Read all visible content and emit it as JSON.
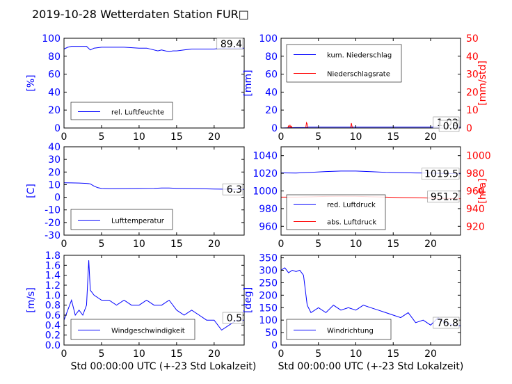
{
  "figure_title": "2019-10-28 Wetterdaten Station FUR□",
  "xlabel": "Std 00:00:00 UTC (+-23 Std Lokalzeit)",
  "colors": {
    "primary": "#0000ff",
    "secondary": "#ff0000",
    "axis": "#000000"
  },
  "chart_data": [
    {
      "id": "humidity",
      "type": "line",
      "xlim": [
        0,
        24
      ],
      "ylim": [
        0,
        100
      ],
      "yticks": [
        0,
        20,
        40,
        60,
        80,
        100
      ],
      "ylabel": "[%]",
      "xticks": [
        0,
        5,
        10,
        15,
        20
      ],
      "legend": "bottom-left",
      "last_value_label": "89.4",
      "series": [
        {
          "name": "rel. Luftfeuchte",
          "color": "#0000ff",
          "x": [
            0,
            0.5,
            1,
            2,
            3,
            3.5,
            4,
            5,
            6,
            8,
            10,
            11,
            12,
            12.5,
            13,
            13.5,
            14,
            14.5,
            15,
            16,
            17,
            18,
            19,
            20,
            21,
            22,
            23,
            24
          ],
          "y": [
            88,
            90,
            91,
            91,
            91,
            87,
            89,
            90,
            90,
            90,
            89,
            89,
            87,
            86,
            87,
            86,
            85,
            86,
            86,
            87,
            88,
            88,
            88,
            88,
            89,
            89,
            89,
            89
          ]
        }
      ]
    },
    {
      "id": "precipitation",
      "type": "line",
      "xlim": [
        0,
        24
      ],
      "ylim": [
        0,
        100
      ],
      "yticks": [
        0,
        20,
        40,
        60,
        80,
        100
      ],
      "ylabel": "[mm]",
      "ylim_right": [
        0,
        50
      ],
      "yticks_right": [
        0,
        10,
        20,
        30,
        40,
        50
      ],
      "ylabel_right": "[mm/std]",
      "xticks": [
        0,
        5,
        10,
        15,
        20
      ],
      "legend": "top-left",
      "last_value_labels": [
        "1.02",
        "0.0"
      ],
      "series": [
        {
          "name": "kum. Niederschlag",
          "color": "#0000ff",
          "axis": "left",
          "x": [
            0,
            1,
            2,
            3.4,
            3.6,
            5,
            8,
            9.5,
            10,
            12,
            16,
            20,
            24
          ],
          "y": [
            0,
            0.3,
            0.5,
            0.6,
            0.9,
            0.9,
            0.9,
            1.0,
            1.02,
            1.02,
            1.02,
            1.02,
            1.02
          ]
        },
        {
          "name": "Niederschlagsrate",
          "color": "#ff0000",
          "axis": "right",
          "x": [
            0,
            0.9,
            1.0,
            1.1,
            1.2,
            1.3,
            1.4,
            1.5,
            2.5,
            3.3,
            3.4,
            3.5,
            3.6,
            5,
            9.3,
            9.4,
            9.5,
            9.6,
            12,
            24
          ],
          "y": [
            0,
            0,
            1.2,
            0.6,
            1.5,
            0.4,
            1.0,
            0,
            0,
            0,
            3.0,
            2.2,
            0,
            0,
            0,
            2.7,
            0.8,
            0,
            0,
            0
          ]
        }
      ]
    },
    {
      "id": "temperature",
      "type": "line",
      "xlim": [
        0,
        24
      ],
      "ylim": [
        -30,
        40
      ],
      "yticks": [
        -30,
        -20,
        -10,
        0,
        10,
        20,
        30,
        40
      ],
      "ylabel": "[C]",
      "xticks": [
        0,
        5,
        10,
        15,
        20
      ],
      "legend": "bottom-left",
      "last_value_label": "6.3",
      "series": [
        {
          "name": "Lufttemperatur",
          "color": "#0000ff",
          "x": [
            0,
            1,
            2,
            3,
            3.5,
            4,
            4.5,
            5,
            6,
            8,
            10,
            12,
            13,
            14,
            15,
            16,
            18,
            20,
            22,
            24
          ],
          "y": [
            11.5,
            11.4,
            11.3,
            11,
            10.6,
            8.8,
            7.6,
            7,
            6.8,
            6.9,
            7.0,
            7.1,
            7.3,
            7.3,
            7.1,
            7.0,
            6.8,
            6.5,
            6.4,
            6.3
          ]
        }
      ]
    },
    {
      "id": "pressure",
      "type": "line",
      "xlim": [
        0,
        24
      ],
      "ylim": [
        950,
        1050
      ],
      "yticks": [
        960,
        980,
        1000,
        1020,
        1040
      ],
      "ylabel": "",
      "ylim_right": [
        910,
        1010
      ],
      "yticks_right": [
        920,
        940,
        960,
        980,
        1000
      ],
      "ylabel_right": "[hPa]",
      "xticks": [
        0,
        5,
        10,
        15,
        20
      ],
      "legend": "bottom-left",
      "last_value_labels": [
        "1019.5",
        "951.2"
      ],
      "series": [
        {
          "name": "red. Luftdruck",
          "color": "#0000ff",
          "axis": "left",
          "x": [
            0,
            2,
            4,
            6,
            8,
            10,
            12,
            14,
            16,
            18,
            20,
            22,
            24
          ],
          "y": [
            1020.5,
            1020.3,
            1021,
            1022,
            1022.5,
            1022.5,
            1021.8,
            1021,
            1020.6,
            1020.4,
            1020.2,
            1019.8,
            1019.5
          ]
        },
        {
          "name": "abs. Luftdruck",
          "color": "#ff0000",
          "axis": "right",
          "x": [
            0,
            2,
            4,
            6,
            8,
            10,
            12,
            14,
            16,
            18,
            20,
            22,
            24
          ],
          "y": [
            953,
            953,
            953.3,
            953.8,
            954,
            953.9,
            953.4,
            953,
            952.5,
            952.3,
            952,
            951.6,
            951.2
          ]
        }
      ]
    },
    {
      "id": "wind_speed",
      "type": "line",
      "xlim": [
        0,
        24
      ],
      "ylim": [
        0,
        1.8
      ],
      "yticks": [
        0.0,
        0.2,
        0.4,
        0.6,
        0.8,
        1.0,
        1.2,
        1.4,
        1.6,
        1.8
      ],
      "ylabel": "[m/s]",
      "xticks": [
        0,
        5,
        10,
        15,
        20
      ],
      "legend": "bottom-left",
      "last_value_label": "0.5",
      "series": [
        {
          "name": "Windgeschwindigkeit",
          "color": "#0000ff",
          "x": [
            0,
            0.5,
            1,
            1.5,
            2,
            2.5,
            3,
            3.3,
            3.5,
            4,
            5,
            6,
            7,
            8,
            9,
            10,
            11,
            12,
            13,
            14,
            15,
            16,
            17,
            18,
            19,
            20,
            21,
            22,
            23,
            24
          ],
          "y": [
            0.5,
            0.7,
            0.9,
            0.6,
            0.7,
            0.6,
            0.8,
            1.7,
            1.1,
            1.0,
            0.9,
            0.9,
            0.8,
            0.9,
            0.8,
            0.8,
            0.9,
            0.8,
            0.8,
            0.9,
            0.7,
            0.6,
            0.7,
            0.6,
            0.5,
            0.5,
            0.3,
            0.4,
            0.5,
            0.5
          ]
        }
      ]
    },
    {
      "id": "wind_direction",
      "type": "line",
      "xlim": [
        0,
        24
      ],
      "ylim": [
        0,
        360
      ],
      "yticks": [
        0,
        50,
        100,
        150,
        200,
        250,
        300,
        350
      ],
      "ylabel": "[deg]",
      "xticks": [
        0,
        5,
        10,
        15,
        20
      ],
      "legend": "bottom-left",
      "last_value_label": "76.8",
      "series": [
        {
          "name": "Windrichtung",
          "color": "#0000ff",
          "x": [
            0,
            0.5,
            1,
            1.5,
            2,
            2.5,
            3,
            3.5,
            4,
            5,
            6,
            7,
            8,
            9,
            10,
            11,
            12,
            13,
            14,
            15,
            16,
            17,
            18,
            19,
            20,
            21,
            22,
            23,
            24
          ],
          "y": [
            300,
            310,
            290,
            300,
            295,
            300,
            280,
            160,
            130,
            150,
            130,
            160,
            140,
            150,
            140,
            160,
            150,
            140,
            130,
            120,
            110,
            130,
            90,
            100,
            80,
            110,
            90,
            80,
            77
          ]
        }
      ]
    }
  ]
}
